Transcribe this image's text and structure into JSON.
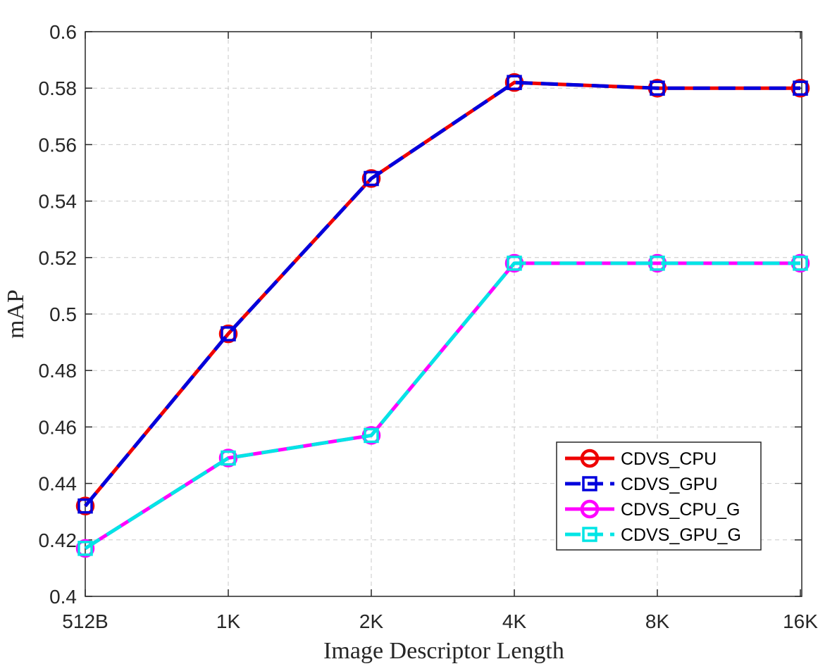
{
  "chart_data": {
    "type": "line",
    "categories": [
      "512B",
      "1K",
      "2K",
      "4K",
      "8K",
      "16K"
    ],
    "xlabel": "Image Descriptor Length",
    "ylabel": "mAP",
    "ylim": [
      0.4,
      0.6
    ],
    "yticks": [
      0.4,
      0.42,
      0.44,
      0.46,
      0.48,
      0.5,
      0.52,
      0.54,
      0.56,
      0.58,
      0.6
    ],
    "yticklabels": [
      "0.4",
      "0.42",
      "0.44",
      "0.46",
      "0.48",
      "0.5",
      "0.52",
      "0.54",
      "0.56",
      "0.58",
      "0.6"
    ],
    "grid": true,
    "legend_position": "bottom-right",
    "series": [
      {
        "name": "CDVS_CPU",
        "values": [
          0.432,
          0.493,
          0.548,
          0.582,
          0.58,
          0.58
        ],
        "color": "#ee0000",
        "marker": "circle",
        "line_style": "solid"
      },
      {
        "name": "CDVS_GPU",
        "values": [
          0.432,
          0.493,
          0.548,
          0.582,
          0.58,
          0.58
        ],
        "color": "#0000dd",
        "marker": "square",
        "line_style": "dashed"
      },
      {
        "name": "CDVS_CPU_G",
        "values": [
          0.417,
          0.449,
          0.457,
          0.518,
          0.518,
          0.518
        ],
        "color": "#ff00ff",
        "marker": "circle",
        "line_style": "solid"
      },
      {
        "name": "CDVS_GPU_G",
        "values": [
          0.417,
          0.449,
          0.457,
          0.518,
          0.518,
          0.518
        ],
        "color": "#00e5e5",
        "marker": "square",
        "line_style": "dashed"
      }
    ]
  }
}
